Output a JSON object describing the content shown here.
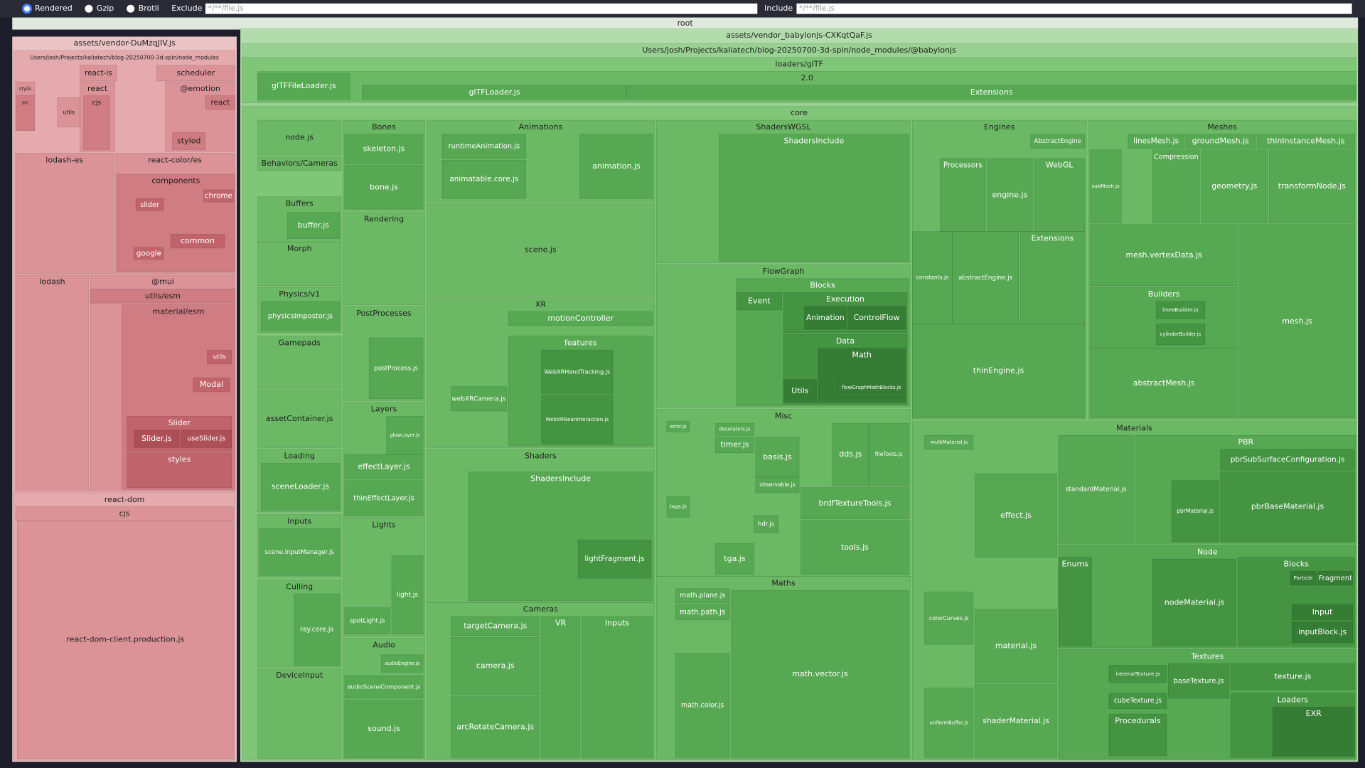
{
  "toolbar": {
    "options": [
      "Rendered",
      "Gzip",
      "Brotli"
    ],
    "exclude": {
      "label": "Exclude",
      "placeholder": "*/**/file.js"
    },
    "include": {
      "label": "Include",
      "placeholder": "*/**/file.js"
    }
  },
  "nodes": [
    "root",
    "assets/vendor-DuMzqJIV.js",
    "Users/josh/Projects/kaliatech/blog-20250700-3d-spin/node_modules",
    "react-is",
    "scheduler",
    "react",
    "cjs",
    "@emotion",
    "react",
    "styled",
    "stylis",
    "src",
    "utils",
    "lodash-es",
    "react-color/es",
    "components",
    "slider",
    "chrome",
    "google",
    "common",
    "lodash",
    "@mui",
    "utils/esm",
    "material/esm",
    "utils",
    "Modal",
    "Slider",
    "Slider.js",
    "useSlider.js",
    "styles",
    "react-dom",
    "cjs",
    "react-dom-client.production.js",
    "assets/vendor_babylonjs-CXKqtQaF.js",
    "Users/josh/Projects/kaliatech/blog-20250700-3d-spin/node_modules/@babylonjs",
    "loaders/glTF",
    "2.0",
    "glTFFileLoader.js",
    "glTFLoader.js",
    "Extensions",
    "core",
    "node.js",
    "Bones",
    "skeleton.js",
    "bone.js",
    "Behaviors/Cameras",
    "Buffers",
    "buffer.js",
    "Morph",
    "Physics/v1",
    "physicsImpostor.js",
    "Gamepads",
    "assetContainer.js",
    "Loading",
    "sceneLoader.js",
    "Inputs",
    "scene.inputManager.js",
    "Culling",
    "ray.core.js",
    "DeviceInput",
    "Rendering",
    "PostProcesses",
    "postProcess.js",
    "Layers",
    "glowLayer.js",
    "effectLayer.js",
    "thinEffectLayer.js",
    "Lights",
    "light.js",
    "spotLight.js",
    "Audio",
    "audioEngine.js",
    "audioSceneComponent.js",
    "sound.js",
    "Animations",
    "runtimeAnimation.js",
    "animatable.core.js",
    "animation.js",
    "scene.js",
    "XR",
    "motionController",
    "features",
    "WebXRHandTracking.js",
    "WebXRNearInteraction.js",
    "webXRCamera.js",
    "Shaders",
    "ShadersInclude",
    "lightFragment.js",
    "Cameras",
    "targetCamera.js",
    "VR",
    "Inputs",
    "camera.js",
    "arcRotateCamera.js",
    "ShadersWGSL",
    "ShadersInclude",
    "FlowGraph",
    "Blocks",
    "Event",
    "Execution",
    "Animation",
    "ControlFlow",
    "Data",
    "Math",
    "flowGraphMathBlocks.js",
    "Utils",
    "Misc",
    "error.js",
    "decorators.js",
    "timer.js",
    "basis.js",
    "dds.js",
    "fileTools.js",
    "observable.js",
    "brdfTextureTools.js",
    "tags.js",
    "hdr.js",
    "tools.js",
    "tga.js",
    "Maths",
    "math.plane.js",
    "math.path.js",
    "math.vector.js",
    "math.color.js",
    "Engines",
    "AbstractEngine",
    "Processors",
    "WebGL",
    "engine.js",
    "Extensions",
    "constants.js",
    "abstractEngine.js",
    "thinEngine.js",
    "Meshes",
    "linesMesh.js",
    "groundMesh.js",
    "thinInstanceMesh.js",
    "Compression",
    "subMesh.js",
    "geometry.js",
    "transformNode.js",
    "mesh.vertexData.js",
    "Builders",
    "linesBuilder.js",
    "cylinderBuilder.js",
    "mesh.js",
    "abstractMesh.js",
    "Materials",
    "multiMaterial.js",
    "PBR",
    "pbrSubSurfaceConfiguration.js",
    "standardMaterial.js",
    "pbrBaseMaterial.js",
    "pbrMaterial.js",
    "effect.js",
    "Node",
    "Enums",
    "Blocks",
    "Particle",
    "Fragment",
    "nodeMaterial.js",
    "Input",
    "inputBlock.js",
    "colorCurves.js",
    "material.js",
    "Textures",
    "texture.js",
    "baseTexture.js",
    "internalTexture.js",
    "cubeTexture.js",
    "Loaders",
    "EXR",
    "Procedurals",
    "shaderMaterial.js",
    "uniformBuffer.js"
  ]
}
